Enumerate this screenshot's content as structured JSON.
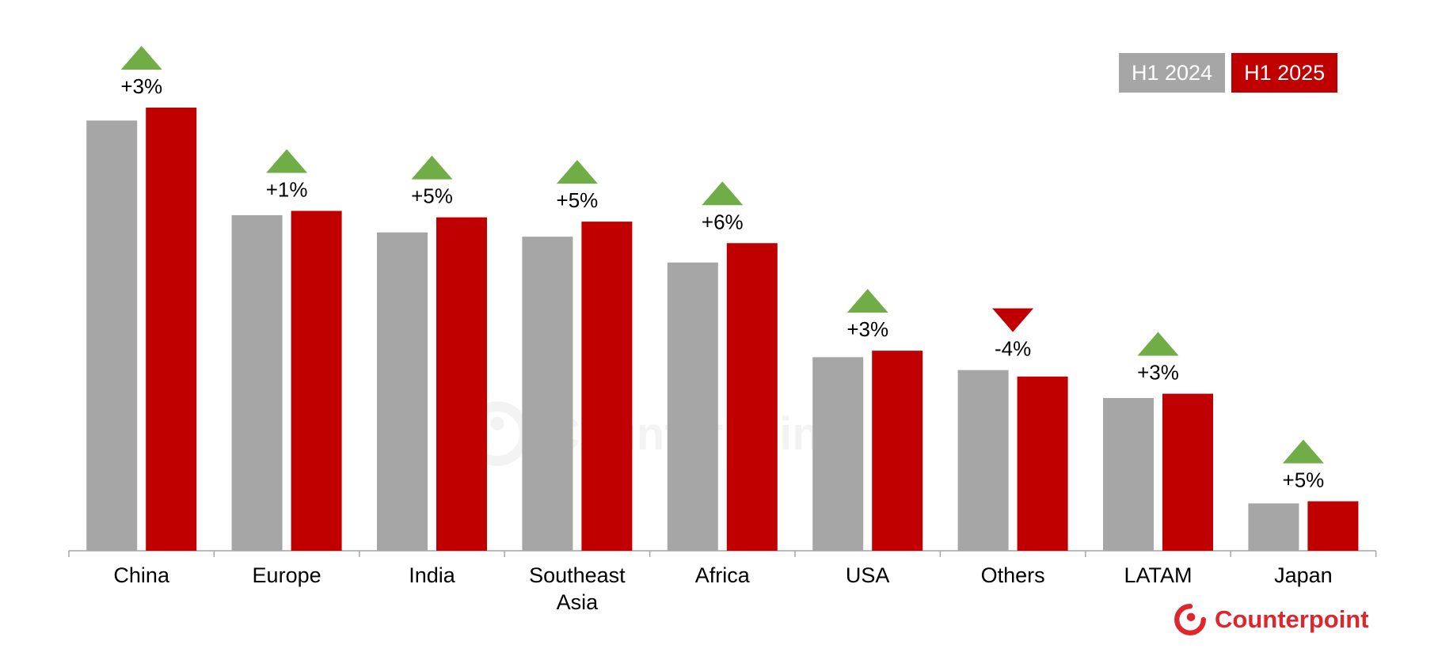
{
  "chart_data": {
    "type": "bar",
    "title": "",
    "xlabel": "",
    "ylabel": "",
    "categories": [
      "China",
      "Europe",
      "India",
      "Southeast Asia",
      "Africa",
      "USA",
      "Others",
      "LATAM",
      "Japan"
    ],
    "series": [
      {
        "name": "H1 2024",
        "color": "#a6a6a6",
        "values": [
          100,
          78,
          74,
          73,
          67,
          45,
          42,
          35.5,
          11
        ]
      },
      {
        "name": "H1 2025",
        "color": "#c00000",
        "values": [
          103,
          79,
          77.5,
          76.5,
          71.5,
          46.5,
          40.5,
          36.5,
          11.5
        ]
      }
    ],
    "change_labels": [
      "+3%",
      "+1%",
      "+5%",
      "+5%",
      "+6%",
      "+3%",
      "-4%",
      "+3%",
      "+5%"
    ],
    "change_direction": [
      "up",
      "up",
      "up",
      "up",
      "up",
      "up",
      "down",
      "up",
      "up"
    ],
    "up_color": "#70ad47",
    "down_color": "#c00000",
    "ylim": [
      0,
      103
    ],
    "grid": false,
    "legend_position": "top-right"
  },
  "legend": {
    "items": [
      {
        "label": "H1 2024",
        "color": "#a6a6a6"
      },
      {
        "label": "H1 2025",
        "color": "#c00000"
      }
    ]
  },
  "brand": {
    "name": "Counterpoint",
    "color": "#e0252d",
    "icon": "counterpoint-logo-icon"
  },
  "watermark": {
    "name": "Counterpoint"
  }
}
